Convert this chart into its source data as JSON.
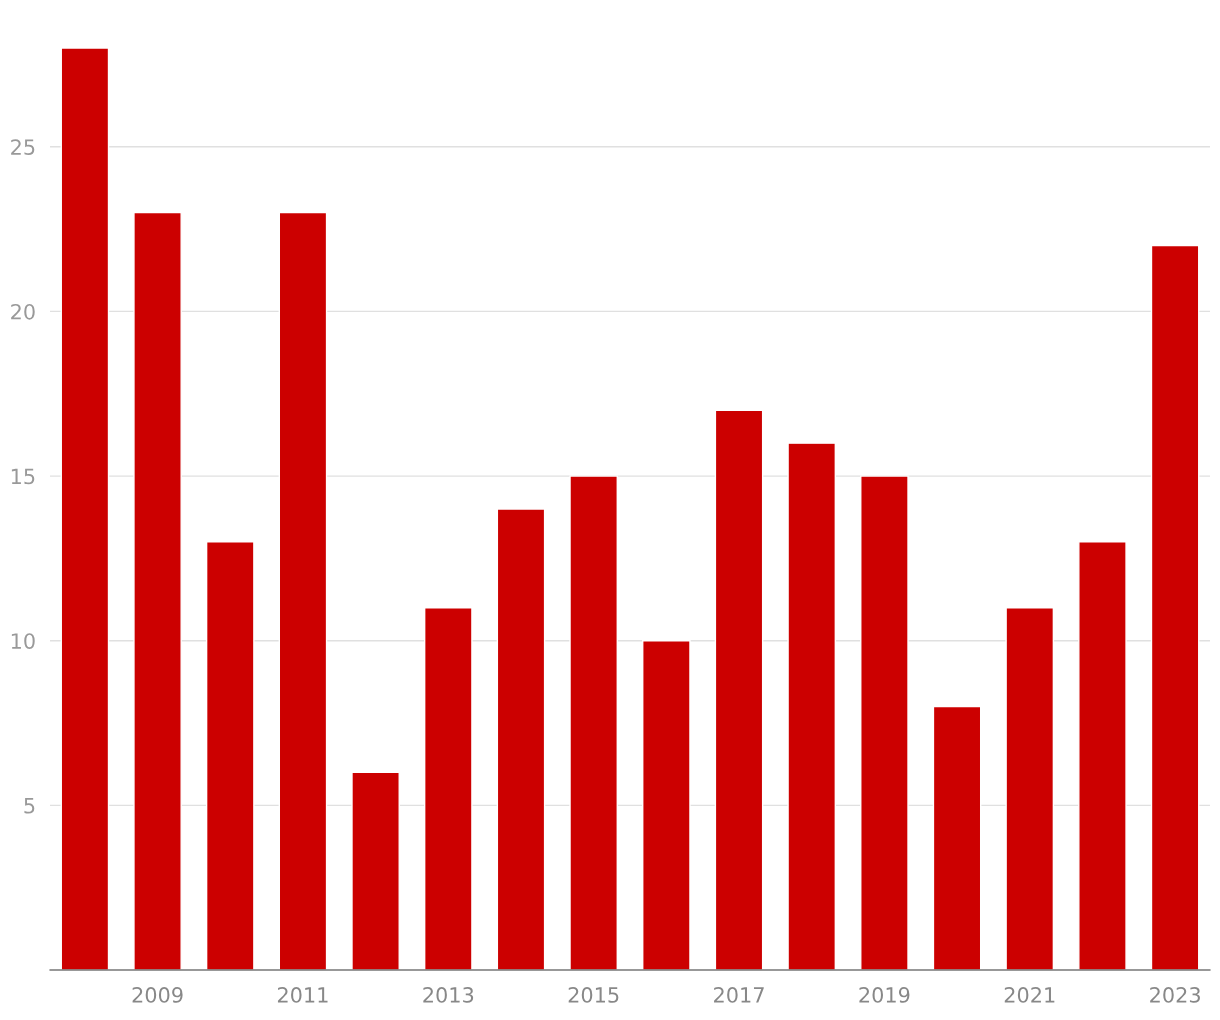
{
  "chart_data": {
    "type": "bar",
    "categories": [
      null,
      "2009",
      null,
      "2011",
      null,
      "2013",
      null,
      "2015",
      null,
      "2017",
      null,
      "2019",
      null,
      "2021",
      null,
      "2023"
    ],
    "values": [
      28,
      23,
      13,
      23,
      6,
      11,
      14,
      15,
      10,
      17,
      16,
      15,
      8,
      11,
      13,
      22
    ],
    "color": "#cc0000",
    "ylim": [
      0,
      28
    ],
    "yticks": [
      5,
      10,
      15,
      20,
      25
    ],
    "grid": "y"
  }
}
